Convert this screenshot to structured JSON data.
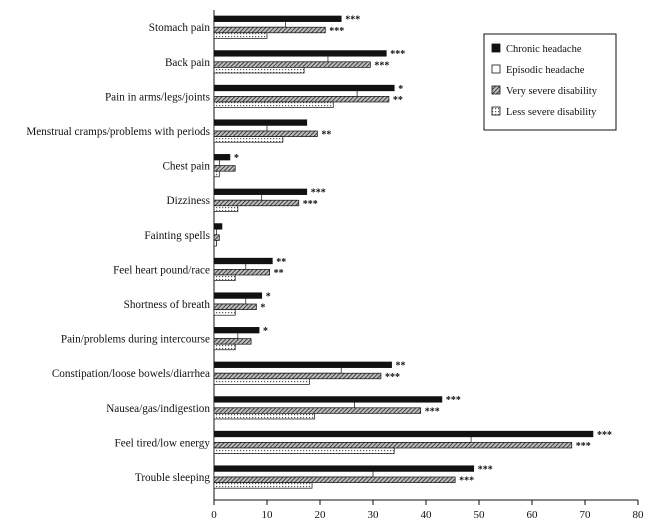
{
  "chart_data": {
    "type": "bar",
    "orientation": "horizontal",
    "categories": [
      "Stomach pain",
      "Back pain",
      "Pain in arms/legs/joints",
      "Menstrual cramps/problems with periods",
      "Chest pain",
      "Dizziness",
      "Fainting spells",
      "Feel heart pound/race",
      "Shortness of breath",
      "Pain/problems during intercourse",
      "Constipation/loose bowels/diarrhea",
      "Nausea/gas/indigestion",
      "Feel tired/low energy",
      "Trouble sleeping"
    ],
    "series": [
      {
        "name": "Chronic headache",
        "values": [
          24,
          32.5,
          34,
          17.5,
          3,
          17.5,
          1.5,
          11,
          9,
          8.5,
          33.5,
          43,
          71.5,
          49
        ],
        "pattern": "solid",
        "color": "#111111"
      },
      {
        "name": "Episodic headache",
        "values": [
          13.5,
          21.5,
          27,
          10,
          1,
          9,
          0.5,
          6,
          6,
          4.5,
          24,
          26.5,
          48.5,
          30
        ],
        "pattern": "white",
        "color": "#ffffff"
      },
      {
        "name": "Very severe disability",
        "values": [
          21,
          29.5,
          33,
          19.5,
          4,
          16,
          1,
          10.5,
          8,
          7,
          31.5,
          39,
          67.5,
          45.5
        ],
        "pattern": "hatch",
        "color": "#666666"
      },
      {
        "name": "Less severe disability",
        "values": [
          10,
          17,
          22.5,
          13,
          1,
          4.5,
          0.5,
          4,
          4,
          4,
          18,
          19,
          34,
          18.5
        ],
        "pattern": "dotted",
        "color": "#dddddd"
      }
    ],
    "significance": [
      "***",
      "***",
      "*",
      "",
      "*",
      "***",
      "",
      "**",
      "*",
      "*",
      "**",
      "***",
      "***",
      "***"
    ],
    "significance_lower": [
      "***",
      "***",
      "**",
      "**",
      "",
      "***",
      "",
      "**",
      "*",
      "",
      "***",
      "***",
      "***",
      "***"
    ],
    "xlim": [
      0,
      80
    ],
    "xticks": [
      0,
      10,
      20,
      30,
      40,
      50,
      60,
      70,
      80
    ],
    "legend_position": "top-right",
    "grid": false,
    "title": "",
    "xlabel": "",
    "ylabel": ""
  }
}
